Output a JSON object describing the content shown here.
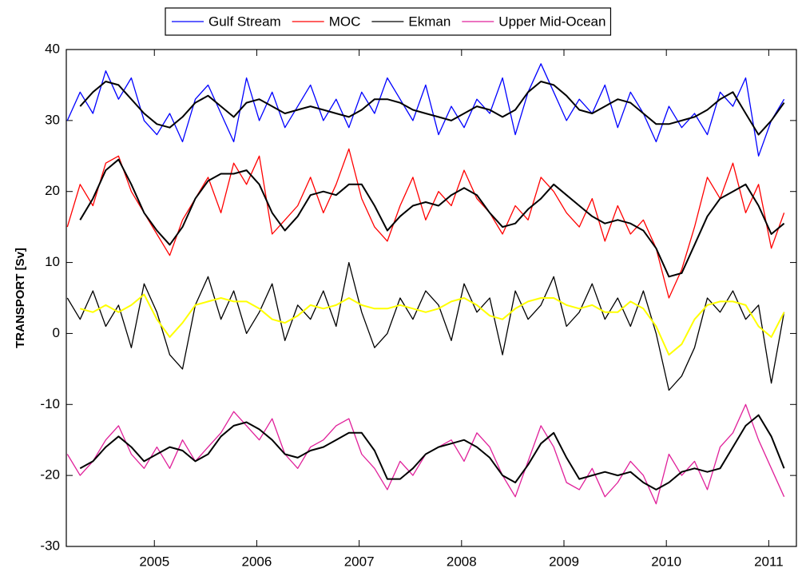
{
  "chart_data": {
    "type": "line",
    "y_label": "TRANSPORT [Sv]",
    "x": [
      2004.15,
      2004.275,
      2004.4,
      2004.525,
      2004.65,
      2004.775,
      2004.9,
      2005.025,
      2005.15,
      2005.275,
      2005.4,
      2005.525,
      2005.65,
      2005.775,
      2005.9,
      2006.025,
      2006.15,
      2006.275,
      2006.4,
      2006.525,
      2006.65,
      2006.775,
      2006.9,
      2007.025,
      2007.15,
      2007.275,
      2007.4,
      2007.525,
      2007.65,
      2007.775,
      2007.9,
      2008.025,
      2008.15,
      2008.275,
      2008.4,
      2008.525,
      2008.65,
      2008.775,
      2008.9,
      2009.025,
      2009.15,
      2009.275,
      2009.4,
      2009.525,
      2009.65,
      2009.775,
      2009.9,
      2010.025,
      2010.15,
      2010.275,
      2010.4,
      2010.525,
      2010.65,
      2010.775,
      2010.9,
      2011.025,
      2011.15
    ],
    "series": [
      {
        "name": "Gulf Stream",
        "color": "#0000ff",
        "values": [
          30,
          34,
          31,
          37,
          33,
          36,
          30,
          28,
          31,
          27,
          33,
          35,
          31,
          27,
          36,
          30,
          34,
          29,
          32,
          35,
          30,
          33,
          29,
          34,
          31,
          36,
          33,
          30,
          35,
          28,
          32,
          29,
          33,
          31,
          36,
          28,
          34,
          38,
          34,
          30,
          33,
          31,
          35,
          29,
          34,
          31,
          27,
          32,
          29,
          31,
          28,
          34,
          32,
          36,
          25,
          30,
          33
        ]
      },
      {
        "name": "MOC",
        "color": "#ff0000",
        "values": [
          15,
          21,
          18,
          24,
          25,
          20,
          17,
          14,
          11,
          16,
          19,
          22,
          17,
          24,
          21,
          25,
          14,
          16,
          18,
          22,
          17,
          21,
          26,
          19,
          15,
          13,
          18,
          22,
          16,
          20,
          18,
          23,
          19,
          17,
          14,
          18,
          16,
          22,
          20,
          17,
          15,
          19,
          13,
          18,
          14,
          16,
          12,
          5,
          9,
          15,
          22,
          19,
          24,
          17,
          21,
          12,
          17
        ]
      },
      {
        "name": "Ekman",
        "color": "#000000",
        "values": [
          5,
          2,
          6,
          1,
          4,
          -2,
          7,
          3,
          -3,
          -5,
          4,
          8,
          2,
          6,
          0,
          3,
          7,
          -1,
          4,
          2,
          6,
          1,
          10,
          3,
          -2,
          0,
          5,
          2,
          6,
          4,
          -1,
          7,
          3,
          5,
          -3,
          6,
          2,
          4,
          8,
          1,
          3,
          7,
          2,
          5,
          1,
          6,
          0,
          -8,
          -6,
          -2,
          5,
          3,
          6,
          2,
          4,
          -7,
          3
        ]
      },
      {
        "name": "Upper Mid-Ocean",
        "color": "#e0209a",
        "values": [
          -17,
          -20,
          -18,
          -15,
          -13,
          -17,
          -19,
          -16,
          -19,
          -15,
          -18,
          -16,
          -14,
          -11,
          -13,
          -15,
          -12,
          -17,
          -19,
          -16,
          -15,
          -13,
          -12,
          -17,
          -19,
          -22,
          -18,
          -20,
          -17,
          -16,
          -15,
          -18,
          -14,
          -16,
          -20,
          -23,
          -18,
          -13,
          -16,
          -21,
          -22,
          -19,
          -23,
          -21,
          -18,
          -20,
          -24,
          -17,
          -20,
          -18,
          -22,
          -16,
          -14,
          -10,
          -15,
          -19,
          -23
        ]
      },
      {
        "color": "#000000",
        "values": [
          null,
          32,
          34,
          35.5,
          35,
          33,
          31,
          29.5,
          29,
          30.5,
          32.5,
          33.5,
          32,
          30.5,
          32.5,
          33,
          32,
          31,
          31.5,
          32,
          31.5,
          31,
          30.5,
          31.5,
          33,
          33,
          32.5,
          31.5,
          31,
          30.5,
          30,
          31,
          32,
          31.5,
          30.5,
          31.5,
          34,
          35.5,
          35,
          33.5,
          31.5,
          31,
          32,
          33,
          32.5,
          31,
          29.5,
          29.5,
          30,
          30.5,
          31.5,
          33,
          34,
          31,
          28,
          30,
          32.5
        ]
      },
      {
        "color": "#000000",
        "values": [
          null,
          16,
          19,
          23,
          24.5,
          21,
          17,
          14.5,
          12.5,
          15,
          19,
          21.5,
          22.5,
          22.5,
          23,
          21,
          17,
          14.5,
          16.5,
          19.5,
          20,
          19.5,
          21,
          21,
          18,
          14.5,
          16.5,
          18,
          18.5,
          18,
          19.5,
          20.5,
          19.5,
          17,
          15,
          15.5,
          17.5,
          19,
          21,
          19.5,
          18,
          16.5,
          15.5,
          16,
          15.5,
          14.5,
          12,
          8,
          8.5,
          12.5,
          16.5,
          19,
          20,
          21,
          18,
          14,
          15.5
        ]
      },
      {
        "color": "#ffff00",
        "values": [
          null,
          3.5,
          3,
          4,
          3,
          4,
          5.5,
          2,
          -0.5,
          1.5,
          4,
          4.5,
          5,
          4.5,
          4.5,
          3.5,
          2,
          1.5,
          2.5,
          4,
          3.5,
          4,
          5,
          4,
          3.5,
          3.5,
          4,
          3.5,
          3,
          3.5,
          4.5,
          5,
          4,
          2.5,
          2,
          3.5,
          4.5,
          5,
          5,
          4,
          3.5,
          4,
          3,
          3,
          4.5,
          3.5,
          1,
          -3,
          -1.5,
          2,
          4,
          4.5,
          4.5,
          4,
          1,
          -0.5,
          3
        ]
      },
      {
        "color": "#000000",
        "values": [
          null,
          -19,
          -18,
          -16,
          -14.5,
          -16,
          -18,
          -17,
          -16,
          -16.5,
          -18,
          -17,
          -14.5,
          -13,
          -12.5,
          -13.5,
          -15,
          -17,
          -17.5,
          -16.5,
          -16,
          -15,
          -14,
          -14,
          -16.5,
          -20.5,
          -20.5,
          -19,
          -17,
          -16,
          -15.5,
          -15,
          -16,
          -17.5,
          -20,
          -21,
          -18.5,
          -15.5,
          -14,
          -17.5,
          -20.5,
          -20,
          -19.5,
          -20,
          -19.5,
          -21,
          -22,
          -21,
          -19.5,
          -19,
          -19.5,
          -19,
          -16,
          -13,
          -11.5,
          -14.5,
          -19
        ]
      }
    ],
    "xlim": [
      2004.14,
      2011.27
    ],
    "xticks": [
      2005,
      2006,
      2007,
      2008,
      2009,
      2010,
      2011
    ],
    "ylim": [
      -30,
      40
    ],
    "yticks": [
      -30,
      -20,
      -10,
      0,
      10,
      20,
      30,
      40
    ],
    "grid": false,
    "legend": "top"
  }
}
